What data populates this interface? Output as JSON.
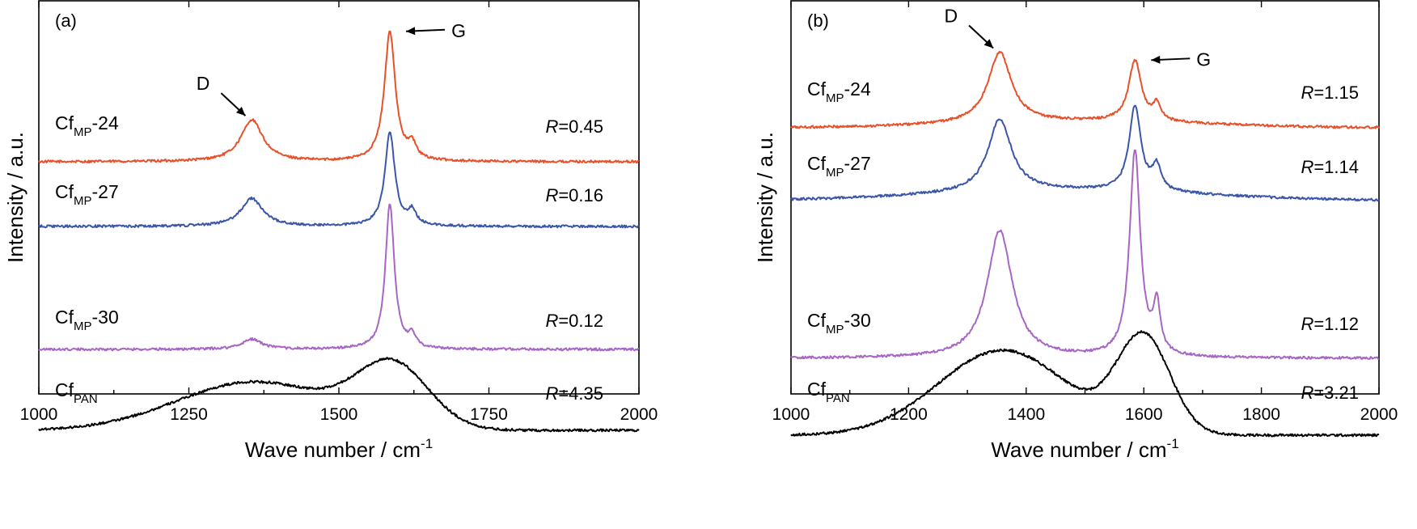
{
  "chart_data": [
    {
      "type": "line",
      "panel_label": "(a)",
      "xlabel": "Wave number / cm",
      "xlabel_sup": "-1",
      "ylabel": "Intensity / a.u.",
      "xlim": [
        1000,
        2000
      ],
      "x_ticks": [
        "1000",
        "1250",
        "1500",
        "1750",
        "2000"
      ],
      "y_ticks_labeled": false,
      "grid": false,
      "series": [
        {
          "base": "Cf",
          "sub": "MP",
          "suffix": "-24",
          "color": "#e8502a",
          "r_prefix": "R",
          "r_value": "=0.45",
          "offset": 0.6,
          "peaks": [
            {
              "x": 1355,
              "h": 0.103,
              "w": 22
            },
            {
              "x": 1585,
              "h": 0.32,
              "w": 11
            },
            {
              "x": 1622,
              "h": 0.035,
              "w": 8
            }
          ],
          "broad": [],
          "tilt": 0.0
        },
        {
          "base": "Cf",
          "sub": "MP",
          "suffix": "-27",
          "color": "#3b56a8",
          "r_prefix": "R",
          "r_value": "=0.16",
          "offset": 0.4,
          "peaks": [
            {
              "x": 1355,
              "h": 0.069,
              "w": 22
            },
            {
              "x": 1585,
              "h": 0.232,
              "w": 10
            },
            {
              "x": 1622,
              "h": 0.035,
              "w": 8
            }
          ],
          "broad": [],
          "tilt": 0.0
        },
        {
          "base": "Cf",
          "sub": "MP",
          "suffix": "-30",
          "color": "#a766c4",
          "r_prefix": "R",
          "r_value": "=0.12",
          "offset": 0.0,
          "peaks": [
            {
              "x": 1355,
              "h": 0.025,
              "w": 20
            },
            {
              "x": 1585,
              "h": 0.36,
              "w": 9
            },
            {
              "x": 1622,
              "h": 0.03,
              "w": 7
            }
          ],
          "broad": [],
          "tilt": 0.0
        },
        {
          "base": "Cf",
          "sub": "PAN",
          "suffix": "",
          "color": "#000000",
          "r_prefix": "R",
          "r_value": "=4.35",
          "offset": -0.25,
          "peaks": [],
          "broad": [
            {
              "x": 1360,
              "h": 0.12,
              "w": 130
            },
            {
              "x": 1590,
              "h": 0.15,
              "w": 60
            }
          ],
          "tilt": 0.0
        }
      ],
      "peak_labels": [
        {
          "text": "D",
          "x": 1355,
          "side": "left"
        },
        {
          "text": "G",
          "x": 1585,
          "side": "right"
        }
      ]
    },
    {
      "type": "line",
      "panel_label": "(b)",
      "xlabel": "Wave number / cm",
      "xlabel_sup": "-1",
      "ylabel": "Intensity / a.u.",
      "xlim": [
        1000,
        2000
      ],
      "x_ticks": [
        "1000",
        "1200",
        "1400",
        "1600",
        "1800",
        "2000"
      ],
      "y_ticks_labeled": false,
      "grid": false,
      "series": [
        {
          "base": "Cf",
          "sub": "MP",
          "suffix": "-24",
          "color": "#e8502a",
          "r_prefix": "R",
          "r_value": "=1.15",
          "offset": 0.74,
          "peaks": [
            {
              "x": 1355,
              "h": 0.175,
              "w": 24
            },
            {
              "x": 1585,
              "h": 0.15,
              "w": 13
            },
            {
              "x": 1622,
              "h": 0.04,
              "w": 8
            }
          ],
          "broad": [
            {
              "x": 1500,
              "h": 0.015,
              "w": 200
            }
          ],
          "tilt": 0.0
        },
        {
          "base": "Cf",
          "sub": "MP",
          "suffix": "-27",
          "color": "#3b56a8",
          "r_prefix": "R",
          "r_value": "=1.14",
          "offset": 0.5,
          "peaks": [
            {
              "x": 1355,
              "h": 0.18,
              "w": 24
            },
            {
              "x": 1585,
              "h": 0.21,
              "w": 12
            },
            {
              "x": 1622,
              "h": 0.06,
              "w": 9
            }
          ],
          "broad": [
            {
              "x": 1470,
              "h": 0.025,
              "w": 220
            }
          ],
          "tilt": 0.0
        },
        {
          "base": "Cf",
          "sub": "MP",
          "suffix": "-30",
          "color": "#a766c4",
          "r_prefix": "R",
          "r_value": "=1.12",
          "offset": 0.0,
          "peaks": [
            {
              "x": 1355,
              "h": 0.315,
              "w": 26
            },
            {
              "x": 1585,
              "h": 0.51,
              "w": 11
            },
            {
              "x": 1622,
              "h": 0.12,
              "w": 7
            }
          ],
          "broad": [],
          "tilt": 0.0
        },
        {
          "base": "Cf",
          "sub": "PAN",
          "suffix": "",
          "color": "#000000",
          "r_prefix": "R",
          "r_value": "=3.21",
          "offset": -0.2,
          "peaks": [],
          "broad": [
            {
              "x": 1360,
              "h": 0.21,
              "w": 110
            },
            {
              "x": 1600,
              "h": 0.235,
              "w": 45
            }
          ],
          "tilt": 0.0
        }
      ],
      "peak_labels": [
        {
          "text": "D",
          "x": 1355,
          "side": "left"
        },
        {
          "text": "G",
          "x": 1585,
          "side": "right"
        }
      ]
    }
  ]
}
